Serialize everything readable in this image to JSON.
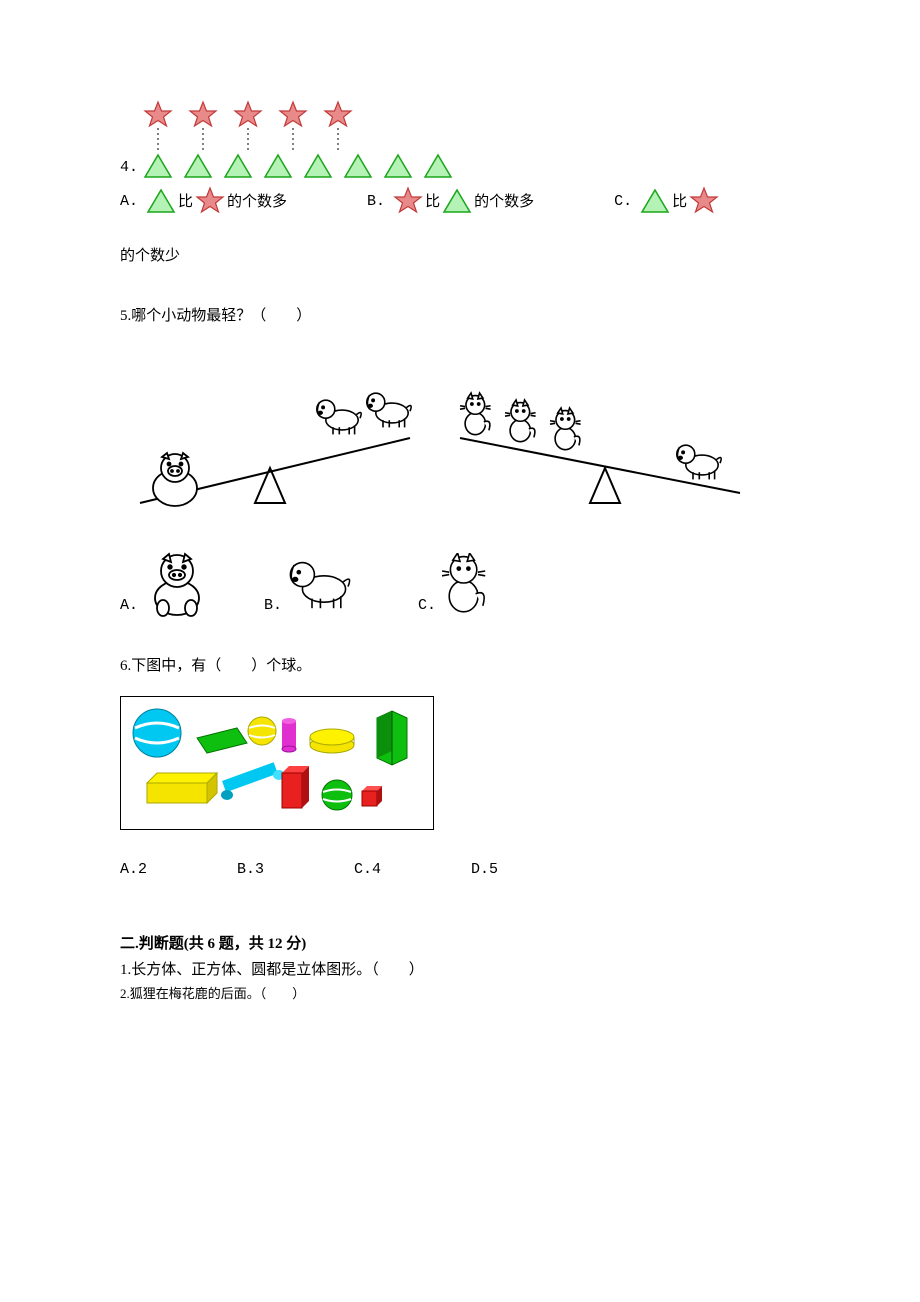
{
  "q4": {
    "number": "4.",
    "stars_row_count": 5,
    "triangles_row_count": 8,
    "star_color": "#e88a8a",
    "star_stroke": "#c23a3a",
    "triangle_fill": "#b5f2b5",
    "triangle_stroke": "#1aa51a",
    "options": {
      "A_label": "A.",
      "A_text1": "比",
      "A_text2": "的个数多",
      "B_label": "B.",
      "B_text1": "比",
      "B_text2": "的个数多",
      "C_label": "C.",
      "C_text1": "比",
      "C_tail": "的个数少"
    }
  },
  "q5": {
    "text": "5.哪个小动物最轻？（　　）",
    "options": {
      "A": "A.",
      "B": "B.",
      "C": "C."
    }
  },
  "q6": {
    "text": "6.下图中，有（　　）个球。",
    "options": {
      "A": "A.2",
      "B": "B.3",
      "C": "C.4",
      "D": "D.5"
    },
    "colors": {
      "cyan": "#00c8f0",
      "green": "#0fbf0f",
      "yellow": "#f5e400",
      "red": "#e82020",
      "magenta": "#e030d0"
    }
  },
  "section2": {
    "title": "二.判断题(共 6 题，共 12 分)",
    "items": [
      "1.长方体、正方体、圆都是立体图形。（　　）",
      "2.狐狸在梅花鹿的后面。（　　）"
    ]
  }
}
